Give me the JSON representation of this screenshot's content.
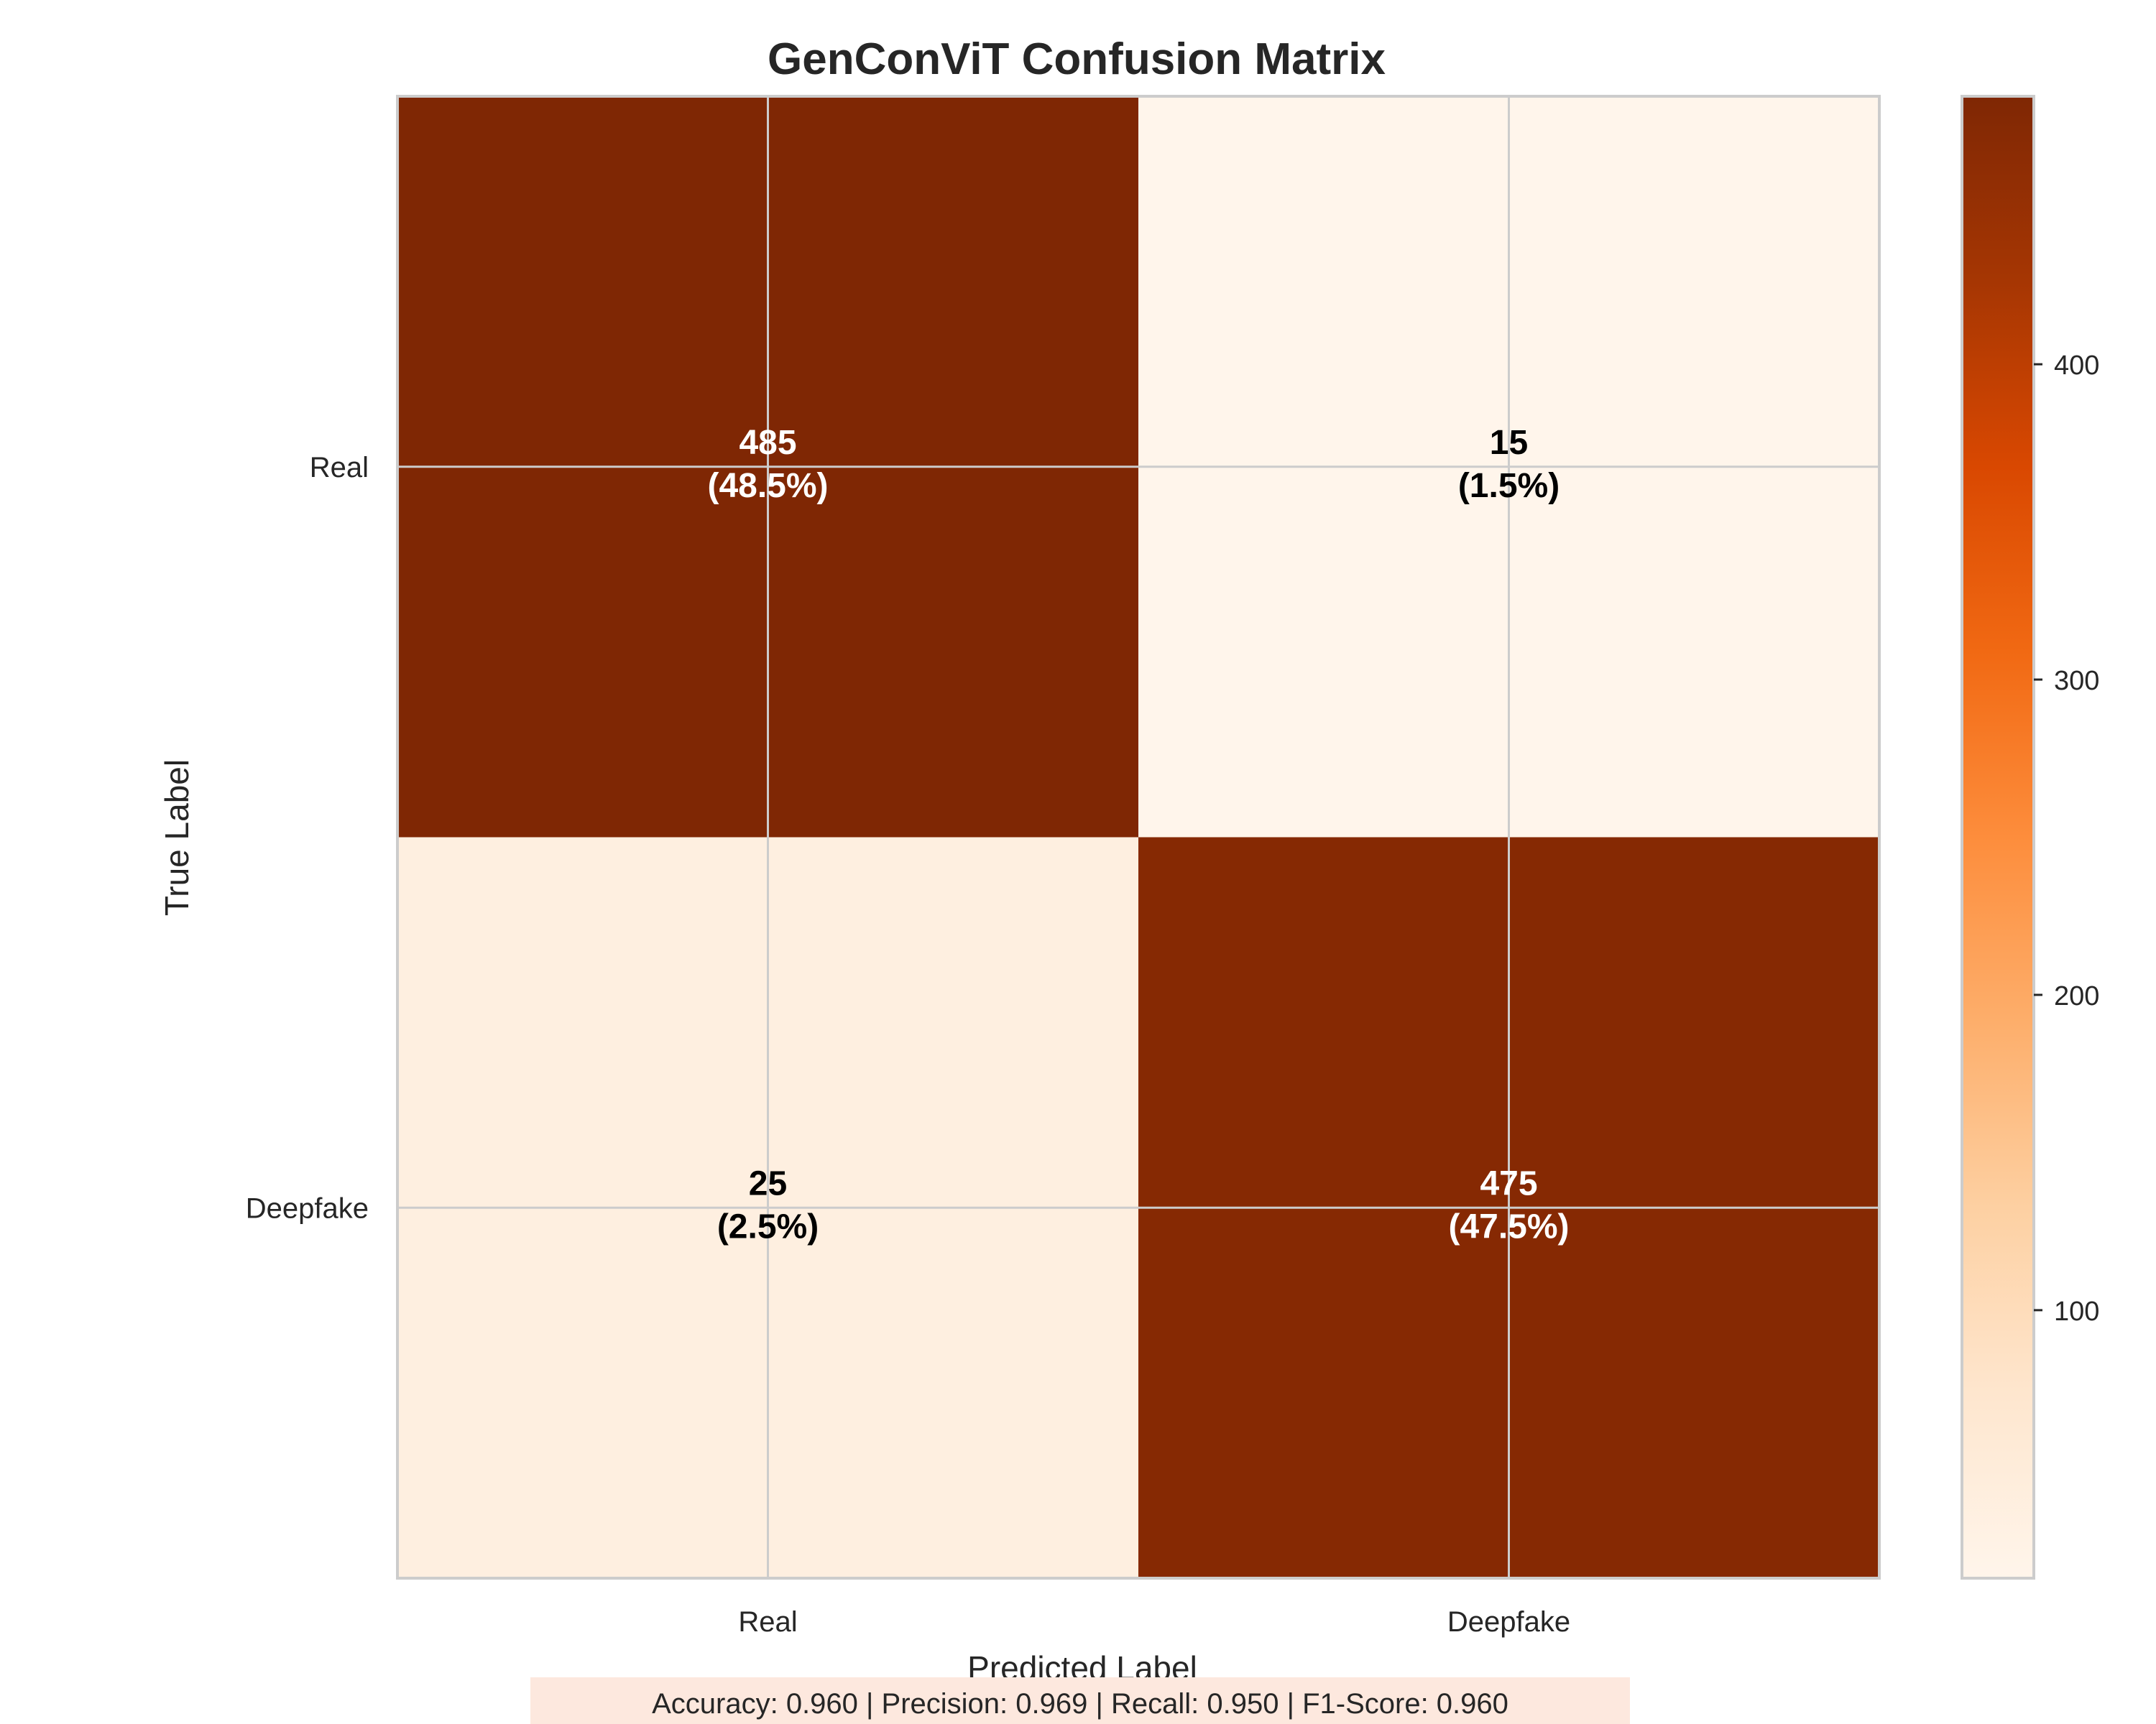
{
  "chart_data": {
    "type": "heatmap",
    "title": "GenConViT Confusion Matrix",
    "xlabel": "Predicted Label",
    "ylabel": "True Label",
    "x_categories": [
      "Real",
      "Deepfake"
    ],
    "y_categories": [
      "Real",
      "Deepfake"
    ],
    "cells": [
      {
        "row": 0,
        "col": 0,
        "value": 485,
        "percent": "(48.5%)",
        "color": "#7f2704"
      },
      {
        "row": 0,
        "col": 1,
        "value": 15,
        "percent": "(1.5%)",
        "color": "#fff5eb"
      },
      {
        "row": 1,
        "col": 0,
        "value": 25,
        "percent": "(2.5%)",
        "color": "#feefe0"
      },
      {
        "row": 1,
        "col": 1,
        "value": 475,
        "percent": "(47.5%)",
        "color": "#862903"
      }
    ],
    "colorbar": {
      "colormap": "Oranges",
      "range": [
        15,
        485
      ],
      "ticks": [
        100,
        200,
        300,
        400
      ]
    },
    "grid": true,
    "metrics_text": "Accuracy: 0.960 | Precision: 0.969 | Recall: 0.950 | F1-Score: 0.960"
  }
}
